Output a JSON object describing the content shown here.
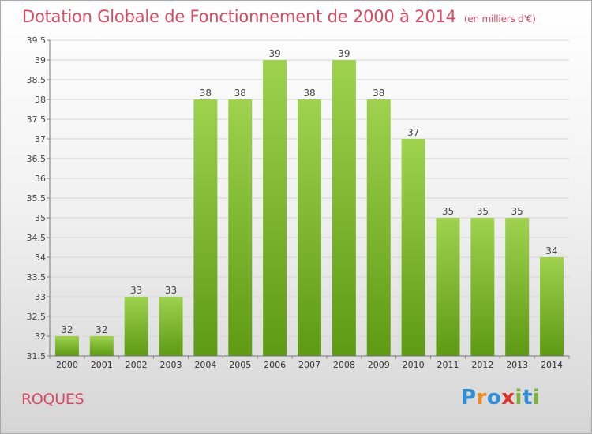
{
  "title": "Dotation Globale de Fonctionnement de 2000 à 2014",
  "unit_label": "(en milliers d'€)",
  "commune": "ROQUES",
  "brand": {
    "letters": [
      "P",
      "r",
      "o",
      "x",
      "i",
      "t",
      "i"
    ],
    "colors": [
      "#2f8fd6",
      "#f08a1c",
      "#2f8fd6",
      "#e0342a",
      "#7ab535",
      "#2f8fd6",
      "#7ab535"
    ]
  },
  "chart_data": {
    "type": "bar",
    "title": "Dotation Globale de Fonctionnement de 2000 à 2014",
    "subtitle": "(en milliers d'€)",
    "categories": [
      "2000",
      "2001",
      "2002",
      "2003",
      "2004",
      "2005",
      "2006",
      "2007",
      "2008",
      "2009",
      "2010",
      "2011",
      "2012",
      "2013",
      "2014"
    ],
    "values": [
      32,
      32,
      33,
      33,
      38,
      38,
      39,
      38,
      39,
      38,
      37,
      35,
      35,
      35,
      34
    ],
    "xlabel": "",
    "ylabel": "",
    "ylim": [
      31.5,
      39.5
    ],
    "yticks": [
      31.5,
      32,
      32.5,
      33,
      33.5,
      34,
      34.5,
      35,
      35.5,
      36,
      36.5,
      37,
      37.5,
      38,
      38.5,
      39,
      39.5
    ],
    "grid": true,
    "bar_color_top": "#9ed24f",
    "bar_color_bottom": "#5e9a14"
  }
}
